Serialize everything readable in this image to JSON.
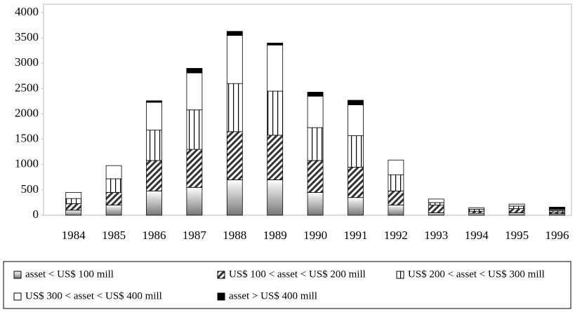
{
  "chart_data": {
    "type": "bar",
    "stacked": true,
    "categories": [
      "1984",
      "1985",
      "1986",
      "1987",
      "1988",
      "1989",
      "1990",
      "1991",
      "1992",
      "1993",
      "1994",
      "1995",
      "1996"
    ],
    "series": [
      {
        "name": "asset < US$ 100 mill",
        "values": [
          100,
          200,
          480,
          550,
          700,
          700,
          450,
          350,
          200,
          50,
          40,
          50,
          30
        ]
      },
      {
        "name": "US$ 100 < asset < US$ 200 mill",
        "values": [
          130,
          250,
          600,
          750,
          950,
          880,
          630,
          600,
          280,
          150,
          40,
          80,
          30
        ]
      },
      {
        "name": "US$ 200 < asset < US$ 300 mill",
        "values": [
          100,
          270,
          600,
          780,
          950,
          870,
          650,
          620,
          320,
          50,
          40,
          50,
          30
        ]
      },
      {
        "name": "US$ 300 < asset < US$ 400 mill",
        "values": [
          120,
          260,
          550,
          730,
          950,
          910,
          620,
          610,
          290,
          70,
          30,
          40,
          20
        ]
      },
      {
        "name": "asset > US$ 400 mill",
        "values": [
          0,
          0,
          30,
          90,
          80,
          40,
          80,
          90,
          0,
          0,
          0,
          0,
          50
        ]
      }
    ],
    "ylim": [
      0,
      4000
    ],
    "yticks": [
      0,
      500,
      1000,
      1500,
      2000,
      2500,
      3000,
      3500,
      4000
    ],
    "legend": "bottom"
  }
}
